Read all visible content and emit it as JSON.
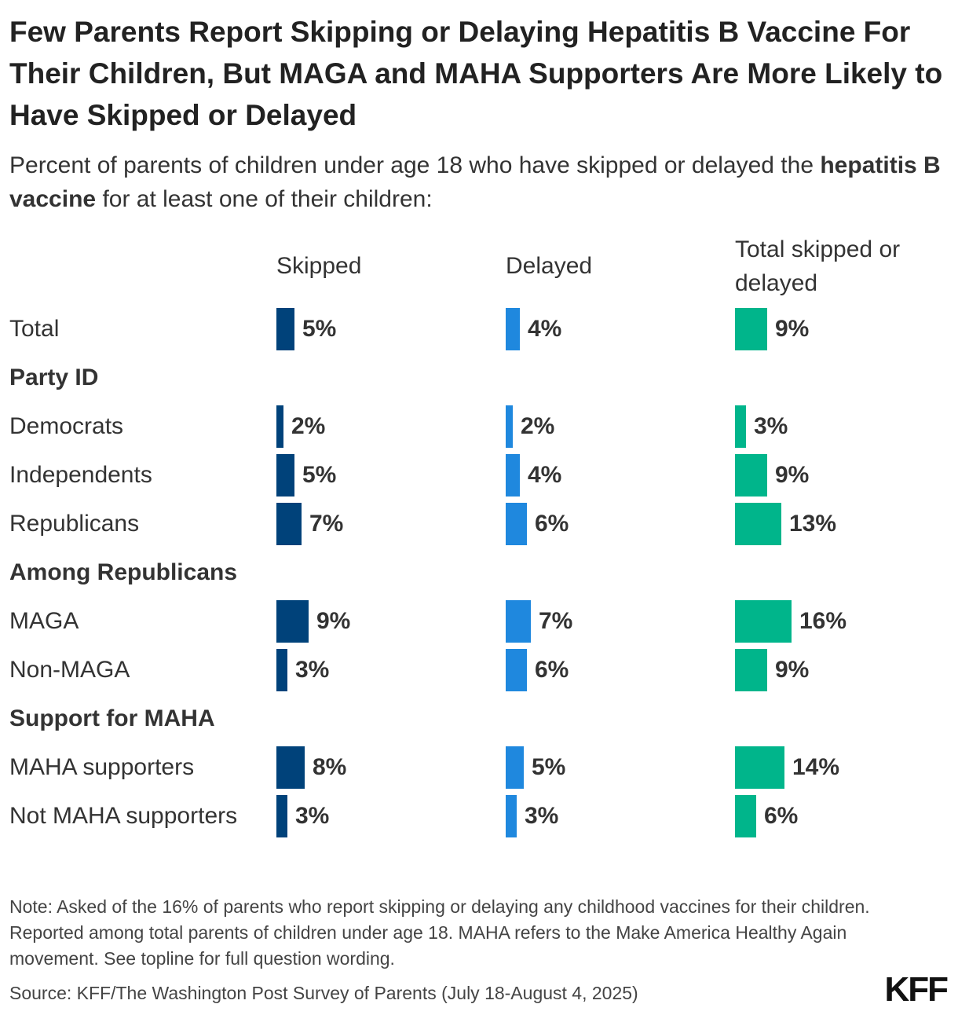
{
  "chart_data": {
    "type": "bar",
    "title": "Few Parents Report Skipping or Delaying Hepatitis B Vaccine For Their Children, But MAGA and MAHA Supporters Are More Likely to Have Skipped or Delayed",
    "subtitle_pre": "Percent of parents of children under age 18 who have skipped or delayed the",
    "subtitle_bold": "hepatitis B vaccine",
    "subtitle_post": "for at least one of their children:",
    "columns": [
      "Skipped",
      "Delayed",
      "Total skipped or delayed"
    ],
    "colors": [
      "#00427a",
      "#1f88de",
      "#00b58b"
    ],
    "value_suffix": "%",
    "rows": [
      {
        "type": "row",
        "label": "Total",
        "values": [
          5,
          4,
          9
        ]
      },
      {
        "type": "group",
        "label": "Party ID"
      },
      {
        "type": "row",
        "label": "Democrats",
        "values": [
          2,
          2,
          3
        ]
      },
      {
        "type": "row",
        "label": "Independents",
        "values": [
          5,
          4,
          9
        ]
      },
      {
        "type": "row",
        "label": "Republicans",
        "values": [
          7,
          6,
          13
        ]
      },
      {
        "type": "group",
        "label": "Among Republicans"
      },
      {
        "type": "row",
        "label": "MAGA",
        "values": [
          9,
          7,
          16
        ]
      },
      {
        "type": "row",
        "label": "Non-MAGA",
        "values": [
          3,
          6,
          9
        ]
      },
      {
        "type": "group",
        "label": "Support for MAHA"
      },
      {
        "type": "row",
        "label": "MAHA supporters",
        "values": [
          8,
          5,
          14
        ]
      },
      {
        "type": "row",
        "label": "Not MAHA supporters",
        "values": [
          3,
          3,
          6
        ]
      }
    ]
  },
  "footer": {
    "note": "Note: Asked of the 16% of parents who report skipping or delaying any childhood vaccines for their children. Reported among total parents of children under age 18. MAHA refers to the Make America Healthy Again movement. See topline for full question wording.",
    "source": "Source: KFF/The Washington Post Survey of Parents (July 18-August 4, 2025)",
    "logo": "KFF"
  }
}
